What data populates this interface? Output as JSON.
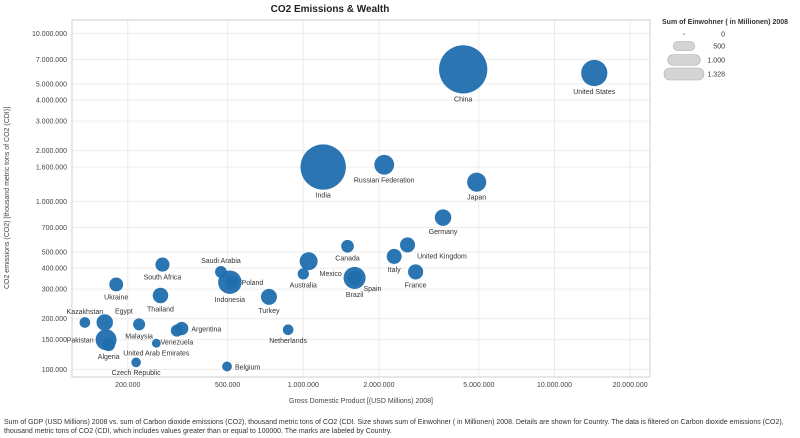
{
  "chart_data": {
    "type": "scatter",
    "title": "CO2 Emissions & Wealth",
    "xlabel": "Gross Domestic Product [(USD Millions) 2008]",
    "ylabel": "CO2 emissions (CO2) [thousand metric tons of CO2 (CDI)]",
    "x_scale": "log",
    "y_scale": "log",
    "xlim": [
      120000,
      24000000
    ],
    "ylim": [
      90000,
      12000000
    ],
    "x_ticks": [
      {
        "value": 200000,
        "label": "200.000"
      },
      {
        "value": 500000,
        "label": "500.000"
      },
      {
        "value": 1000000,
        "label": "1.000.000"
      },
      {
        "value": 2000000,
        "label": "2.000.000"
      },
      {
        "value": 5000000,
        "label": "5.000.000"
      },
      {
        "value": 10000000,
        "label": "10.000.000"
      },
      {
        "value": 20000000,
        "label": "20.000.000"
      }
    ],
    "y_ticks": [
      {
        "value": 100000,
        "label": "100.000"
      },
      {
        "value": 150000,
        "label": "150.000"
      },
      {
        "value": 200000,
        "label": "200.000"
      },
      {
        "value": 300000,
        "label": "300.000"
      },
      {
        "value": 400000,
        "label": "400.000"
      },
      {
        "value": 500000,
        "label": "500.000"
      },
      {
        "value": 700000,
        "label": "700.000"
      },
      {
        "value": 1000000,
        "label": "1.000.000"
      },
      {
        "value": 1600000,
        "label": "1.600.000"
      },
      {
        "value": 2000000,
        "label": "2.000.000"
      },
      {
        "value": 3000000,
        "label": "3.000.000"
      },
      {
        "value": 4000000,
        "label": "4.000.000"
      },
      {
        "value": 5000000,
        "label": "5.000.000"
      },
      {
        "value": 7000000,
        "label": "7.000.000"
      },
      {
        "value": 10000000,
        "label": "10.000.000"
      }
    ],
    "size_variable": "Sum of Einwohner ( in Millionen) 2008",
    "point_color": "#1f6eae",
    "grid": true,
    "legend": {
      "title": "Sum of Einwohner ( in Millionen) 2008",
      "placement": "top-right",
      "entries": [
        {
          "label": "0",
          "value": 0
        },
        {
          "label": "500",
          "value": 500
        },
        {
          "label": "1.000",
          "value": 1000
        },
        {
          "label": "1.328",
          "value": 1328
        }
      ]
    },
    "points": [
      {
        "label": "China",
        "gdp": 4330000,
        "co2": 6100000,
        "population": 1328,
        "label_pos": "below"
      },
      {
        "label": "United States",
        "gdp": 14400000,
        "co2": 5800000,
        "population": 304,
        "label_pos": "below"
      },
      {
        "label": "India",
        "gdp": 1200000,
        "co2": 1600000,
        "population": 1150,
        "label_pos": "below"
      },
      {
        "label": "Russian Federation",
        "gdp": 2100000,
        "co2": 1650000,
        "population": 142,
        "label_pos": "below"
      },
      {
        "label": "Japan",
        "gdp": 4900000,
        "co2": 1300000,
        "population": 128,
        "label_pos": "below"
      },
      {
        "label": "Germany",
        "gdp": 3600000,
        "co2": 800000,
        "population": 82,
        "label_pos": "below"
      },
      {
        "label": "United Kingdom",
        "gdp": 2600000,
        "co2": 550000,
        "population": 61,
        "label_pos": "below-right"
      },
      {
        "label": "Canada",
        "gdp": 1500000,
        "co2": 540000,
        "population": 33,
        "label_pos": "below"
      },
      {
        "label": "Italy",
        "gdp": 2300000,
        "co2": 470000,
        "population": 60,
        "label_pos": "below"
      },
      {
        "label": "France",
        "gdp": 2800000,
        "co2": 380000,
        "population": 62,
        "label_pos": "below"
      },
      {
        "label": "Mexico",
        "gdp": 1050000,
        "co2": 440000,
        "population": 107,
        "label_pos": "below-right"
      },
      {
        "label": "Australia",
        "gdp": 1000000,
        "co2": 370000,
        "population": 21,
        "label_pos": "below"
      },
      {
        "label": "Spain",
        "gdp": 1600000,
        "co2": 350000,
        "population": 46,
        "label_pos": "below-right"
      },
      {
        "label": "Brazil",
        "gdp": 1600000,
        "co2": 350000,
        "population": 192,
        "label_pos": "below"
      },
      {
        "label": "Saudi Arabia",
        "gdp": 470000,
        "co2": 380000,
        "population": 25,
        "label_pos": "above"
      },
      {
        "label": "Poland",
        "gdp": 520000,
        "co2": 330000,
        "population": 38,
        "label_pos": "right"
      },
      {
        "label": "Indonesia",
        "gdp": 510000,
        "co2": 330000,
        "population": 228,
        "label_pos": "below"
      },
      {
        "label": "South Africa",
        "gdp": 275000,
        "co2": 420000,
        "population": 49,
        "label_pos": "below"
      },
      {
        "label": "Ukraine",
        "gdp": 180000,
        "co2": 320000,
        "population": 46,
        "label_pos": "below"
      },
      {
        "label": "Thailand",
        "gdp": 270000,
        "co2": 275000,
        "population": 67,
        "label_pos": "below"
      },
      {
        "label": "Turkey",
        "gdp": 730000,
        "co2": 270000,
        "population": 74,
        "label_pos": "below"
      },
      {
        "label": "Kazakhstan",
        "gdp": 135000,
        "co2": 190000,
        "population": 16,
        "label_pos": "above"
      },
      {
        "label": "Egypt",
        "gdp": 162000,
        "co2": 190000,
        "population": 81,
        "label_pos": "above-right"
      },
      {
        "label": "Malaysia",
        "gdp": 222000,
        "co2": 185000,
        "population": 27,
        "label_pos": "below"
      },
      {
        "label": "Argentina",
        "gdp": 328000,
        "co2": 175000,
        "population": 40,
        "label_pos": "right"
      },
      {
        "label": "Venezuela",
        "gdp": 314000,
        "co2": 170000,
        "population": 28,
        "label_pos": "below"
      },
      {
        "label": "Pakistan",
        "gdp": 164000,
        "co2": 150000,
        "population": 166,
        "label_pos": "left"
      },
      {
        "label": "United Arab Emirates",
        "gdp": 260000,
        "co2": 143000,
        "population": 6,
        "label_pos": "below"
      },
      {
        "label": "Algeria",
        "gdp": 168000,
        "co2": 140000,
        "population": 34,
        "label_pos": "below"
      },
      {
        "label": "Czech Republic",
        "gdp": 216000,
        "co2": 110000,
        "population": 10,
        "label_pos": "below"
      },
      {
        "label": "Netherlands",
        "gdp": 870000,
        "co2": 172000,
        "population": 16,
        "label_pos": "below"
      },
      {
        "label": "Belgium",
        "gdp": 497000,
        "co2": 104000,
        "population": 11,
        "label_pos": "right"
      }
    ]
  },
  "caption": "Sum of GDP (USD Millions) 2008 vs. sum of Carbon dioxide emissions (CO2), thousand metric tons of CO2 (CDI.  Size shows sum of Einwohner ( in Millionen) 2008.  Details are shown for Country.  The data is filtered on Carbon dioxide emissions (CO2), thousand metric tons of CO2 (CDI, which includes values greater than or equal to 100000.  The marks are labeled by Country."
}
